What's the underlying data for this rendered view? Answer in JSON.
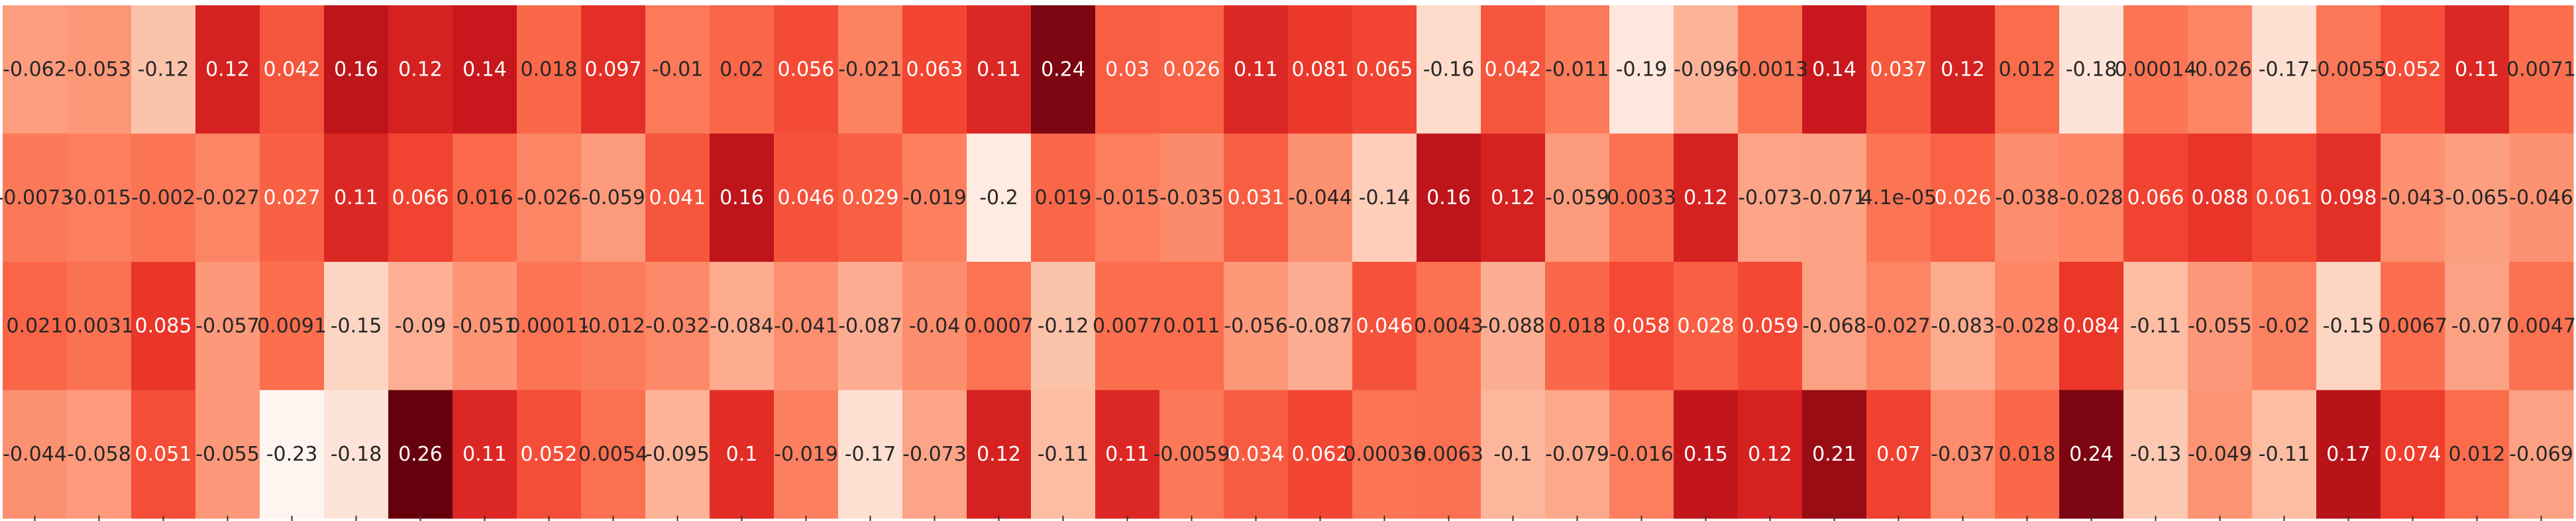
{
  "chart_data": {
    "type": "heatmap",
    "title": "",
    "xlabel": "",
    "ylabel": "",
    "colormap": "Reds",
    "vmin": -0.23,
    "vmax": 0.26,
    "colorbar": false,
    "rows": [
      {
        "labels": [
          "-0.062",
          "-0.053",
          "-0.12",
          "0.12",
          "0.042",
          "0.16",
          "0.12",
          "0.14",
          "0.018",
          "0.097",
          "-0.01",
          "0.02",
          "0.056",
          "-0.021",
          "0.063",
          "0.11",
          "0.24",
          "0.03",
          "0.026",
          "0.11",
          "0.081",
          "0.065",
          "-0.16",
          "0.042",
          "-0.011",
          "-0.19",
          "-0.096",
          "-0.0013",
          "0.14",
          "0.037",
          "0.12",
          "0.012",
          "-0.18",
          "0.00014",
          "-0.026",
          "-0.17",
          "-0.0055",
          "0.052",
          "0.11",
          "0.0071"
        ],
        "values": [
          -0.062,
          -0.053,
          -0.12,
          0.12,
          0.042,
          0.16,
          0.12,
          0.14,
          0.018,
          0.097,
          -0.01,
          0.02,
          0.056,
          -0.021,
          0.063,
          0.11,
          0.24,
          0.03,
          0.026,
          0.11,
          0.081,
          0.065,
          -0.16,
          0.042,
          -0.011,
          -0.19,
          -0.096,
          -0.0013,
          0.14,
          0.037,
          0.12,
          0.012,
          -0.18,
          0.00014,
          -0.026,
          -0.17,
          -0.0055,
          0.052,
          0.11,
          0.0071
        ]
      },
      {
        "labels": [
          "-0.0073",
          "-0.015",
          "-0.002",
          "-0.027",
          "0.027",
          "0.11",
          "0.066",
          "0.016",
          "-0.026",
          "-0.059",
          "0.041",
          "0.16",
          "0.046",
          "0.029",
          "-0.019",
          "-0.2",
          "0.019",
          "-0.015",
          "-0.035",
          "0.031",
          "-0.044",
          "-0.14",
          "0.16",
          "0.12",
          "-0.059",
          "0.0033",
          "0.12",
          "-0.073",
          "-0.071",
          "4.1e-05",
          "0.026",
          "-0.038",
          "-0.028",
          "0.066",
          "0.088",
          "0.061",
          "0.098",
          "-0.043",
          "-0.065",
          "-0.046"
        ],
        "values": [
          -0.0073,
          -0.015,
          -0.002,
          -0.027,
          0.027,
          0.11,
          0.066,
          0.016,
          -0.026,
          -0.059,
          0.041,
          0.16,
          0.046,
          0.029,
          -0.019,
          -0.2,
          0.019,
          -0.015,
          -0.035,
          0.031,
          -0.044,
          -0.14,
          0.16,
          0.12,
          -0.059,
          0.0033,
          0.12,
          -0.073,
          -0.071,
          4.1e-05,
          0.026,
          -0.038,
          -0.028,
          0.066,
          0.088,
          0.061,
          0.098,
          -0.043,
          -0.065,
          -0.046
        ]
      },
      {
        "labels": [
          "0.021",
          "0.0031",
          "0.085",
          "-0.057",
          "0.0091",
          "-0.15",
          "-0.09",
          "-0.051",
          "0.00011",
          "-0.012",
          "-0.032",
          "-0.084",
          "-0.041",
          "-0.087",
          "-0.04",
          "0.0007",
          "-0.12",
          "0.0077",
          "0.011",
          "-0.056",
          "-0.087",
          "0.046",
          "0.0043",
          "-0.088",
          "0.018",
          "0.058",
          "0.028",
          "0.059",
          "-0.068",
          "-0.027",
          "-0.083",
          "-0.028",
          "0.084",
          "-0.11",
          "-0.055",
          "-0.02",
          "-0.15",
          "0.0067",
          "-0.07",
          "0.0047"
        ],
        "values": [
          0.021,
          0.0031,
          0.085,
          -0.057,
          0.0091,
          -0.15,
          -0.09,
          -0.051,
          0.00011,
          -0.012,
          -0.032,
          -0.084,
          -0.041,
          -0.087,
          -0.04,
          0.0007,
          -0.12,
          0.0077,
          0.011,
          -0.056,
          -0.087,
          0.046,
          0.0043,
          -0.088,
          0.018,
          0.058,
          0.028,
          0.059,
          -0.068,
          -0.027,
          -0.083,
          -0.028,
          0.084,
          -0.11,
          -0.055,
          -0.02,
          -0.15,
          0.0067,
          -0.07,
          0.0047
        ]
      },
      {
        "labels": [
          "-0.044",
          "-0.058",
          "0.051",
          "-0.055",
          "-0.23",
          "-0.18",
          "0.26",
          "0.11",
          "0.052",
          "0.0054",
          "-0.095",
          "0.1",
          "-0.019",
          "-0.17",
          "-0.073",
          "0.12",
          "-0.11",
          "0.11",
          "-0.0059",
          "0.034",
          "0.062",
          "0.00036",
          "0.0063",
          "-0.1",
          "-0.079",
          "-0.016",
          "0.15",
          "0.12",
          "0.21",
          "0.07",
          "-0.037",
          "0.018",
          "0.24",
          "-0.13",
          "-0.049",
          "-0.11",
          "0.17",
          "0.074",
          "0.012",
          "-0.069"
        ],
        "values": [
          -0.044,
          -0.058,
          0.051,
          -0.055,
          -0.23,
          -0.18,
          0.26,
          0.11,
          0.052,
          0.0054,
          -0.095,
          0.1,
          -0.019,
          -0.17,
          -0.073,
          0.12,
          -0.11,
          0.11,
          -0.0059,
          0.034,
          0.062,
          0.00036,
          0.0063,
          -0.1,
          -0.079,
          -0.016,
          0.15,
          0.12,
          0.21,
          0.07,
          -0.037,
          0.018,
          0.24,
          -0.13,
          -0.049,
          -0.11,
          0.17,
          0.074,
          0.012,
          -0.069
        ]
      }
    ]
  }
}
